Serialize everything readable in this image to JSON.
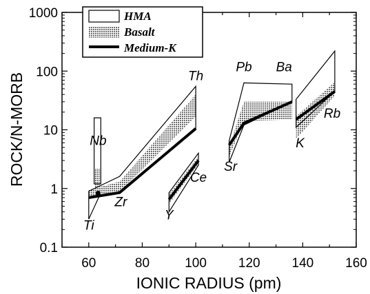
{
  "chart_data": {
    "type": "line",
    "xlabel": "IONIC RADIUS (pm)",
    "ylabel": "ROCK/N-MORB",
    "xlim": [
      50,
      160
    ],
    "ylim": [
      0.1,
      1000
    ],
    "yscale": "log",
    "x_ticks": [
      60,
      80,
      100,
      120,
      140,
      160
    ],
    "y_ticks": [
      0.1,
      1,
      10,
      100,
      1000
    ],
    "y_tick_labels": [
      "0.1",
      "1",
      "10",
      "100",
      "1000"
    ],
    "legend": {
      "position": "top-left",
      "entries": [
        {
          "key": "hma",
          "label": "HMA",
          "style": "open-box"
        },
        {
          "key": "basalt",
          "label": "Basalt",
          "style": "hatched-box"
        },
        {
          "key": "medium_k",
          "label": "Medium-K",
          "style": "thick-line"
        }
      ]
    },
    "element_labels": [
      {
        "text": "Ti",
        "x": 60,
        "y": 0.2
      },
      {
        "text": "Nb",
        "x": 63.5,
        "y": 5.5
      },
      {
        "text": "Zr",
        "x": 72,
        "y": 0.5
      },
      {
        "text": "Th",
        "x": 100,
        "y": 70
      },
      {
        "text": "Y",
        "x": 90,
        "y": 0.3
      },
      {
        "text": "Ce",
        "x": 101,
        "y": 1.3
      },
      {
        "text": "Sr",
        "x": 113,
        "y": 2
      },
      {
        "text": "Pb",
        "x": 118,
        "y": 100
      },
      {
        "text": "Ba",
        "x": 133,
        "y": 100
      },
      {
        "text": "K",
        "x": 139,
        "y": 5
      },
      {
        "text": "Rb",
        "x": 151,
        "y": 16
      }
    ],
    "hma_fields": [
      {
        "name": "Ti-Zr-Th",
        "polygon": [
          [
            60,
            0.3
          ],
          [
            60,
            0.9
          ],
          [
            71.5,
            1.6
          ],
          [
            100,
            55
          ],
          [
            100,
            10
          ],
          [
            71.5,
            0.85
          ],
          [
            64,
            0.75
          ]
        ]
      },
      {
        "name": "Nb",
        "polygon": [
          [
            62,
            1.2
          ],
          [
            62,
            16
          ],
          [
            64.5,
            16
          ],
          [
            64.5,
            1.2
          ]
        ]
      },
      {
        "name": "Y-Ce",
        "polygon": [
          [
            90,
            0.4
          ],
          [
            90,
            0.85
          ],
          [
            101,
            4
          ],
          [
            101,
            2.5
          ]
        ]
      },
      {
        "name": "Sr-Pb-Ba",
        "polygon": [
          [
            112.5,
            2.8
          ],
          [
            112.5,
            6.5
          ],
          [
            118,
            63
          ],
          [
            136,
            60
          ],
          [
            136,
            30
          ],
          [
            118,
            12
          ]
        ]
      },
      {
        "name": "K-Rb",
        "polygon": [
          [
            137.5,
            11
          ],
          [
            137.5,
            33
          ],
          [
            152,
            220
          ],
          [
            152,
            45
          ]
        ]
      }
    ],
    "basalt_fields": [
      {
        "name": "Ti-Zr-Th",
        "polygon": [
          [
            60,
            0.72
          ],
          [
            60,
            0.95
          ],
          [
            71.5,
            1.3
          ],
          [
            100,
            40
          ],
          [
            100,
            17
          ],
          [
            71.5,
            0.88
          ]
        ]
      },
      {
        "name": "Nb",
        "polygon": [
          [
            62.2,
            1.0
          ],
          [
            62.2,
            2.2
          ],
          [
            64.2,
            2.2
          ],
          [
            64.2,
            1.0
          ]
        ]
      },
      {
        "name": "Y-Ce",
        "polygon": [
          [
            90,
            0.55
          ],
          [
            90,
            0.8
          ],
          [
            101,
            3.5
          ],
          [
            101,
            2.6
          ]
        ]
      },
      {
        "name": "Sr-Pb-Ba",
        "polygon": [
          [
            112.5,
            3.5
          ],
          [
            112.5,
            5
          ],
          [
            118,
            30
          ],
          [
            136,
            30
          ],
          [
            136,
            15
          ],
          [
            118,
            14
          ]
        ]
      },
      {
        "name": "K-Rb",
        "polygon": [
          [
            137.5,
            7
          ],
          [
            137.5,
            17
          ],
          [
            152,
            65
          ],
          [
            152,
            38
          ]
        ]
      }
    ],
    "series": [
      {
        "name": "Medium-K",
        "segments": [
          [
            [
              60,
              0.7
            ],
            [
              71.5,
              0.85
            ],
            [
              100,
              10.5
            ]
          ],
          [
            [
              90,
              0.65
            ],
            [
              101,
              3
            ]
          ],
          [
            [
              112.5,
              5.5
            ],
            [
              118,
              13
            ],
            [
              136,
              30
            ]
          ],
          [
            [
              137.5,
              15
            ],
            [
              152,
              45
            ]
          ]
        ]
      }
    ],
    "markers": [
      {
        "x": 63.5,
        "y": 0.83
      }
    ]
  }
}
